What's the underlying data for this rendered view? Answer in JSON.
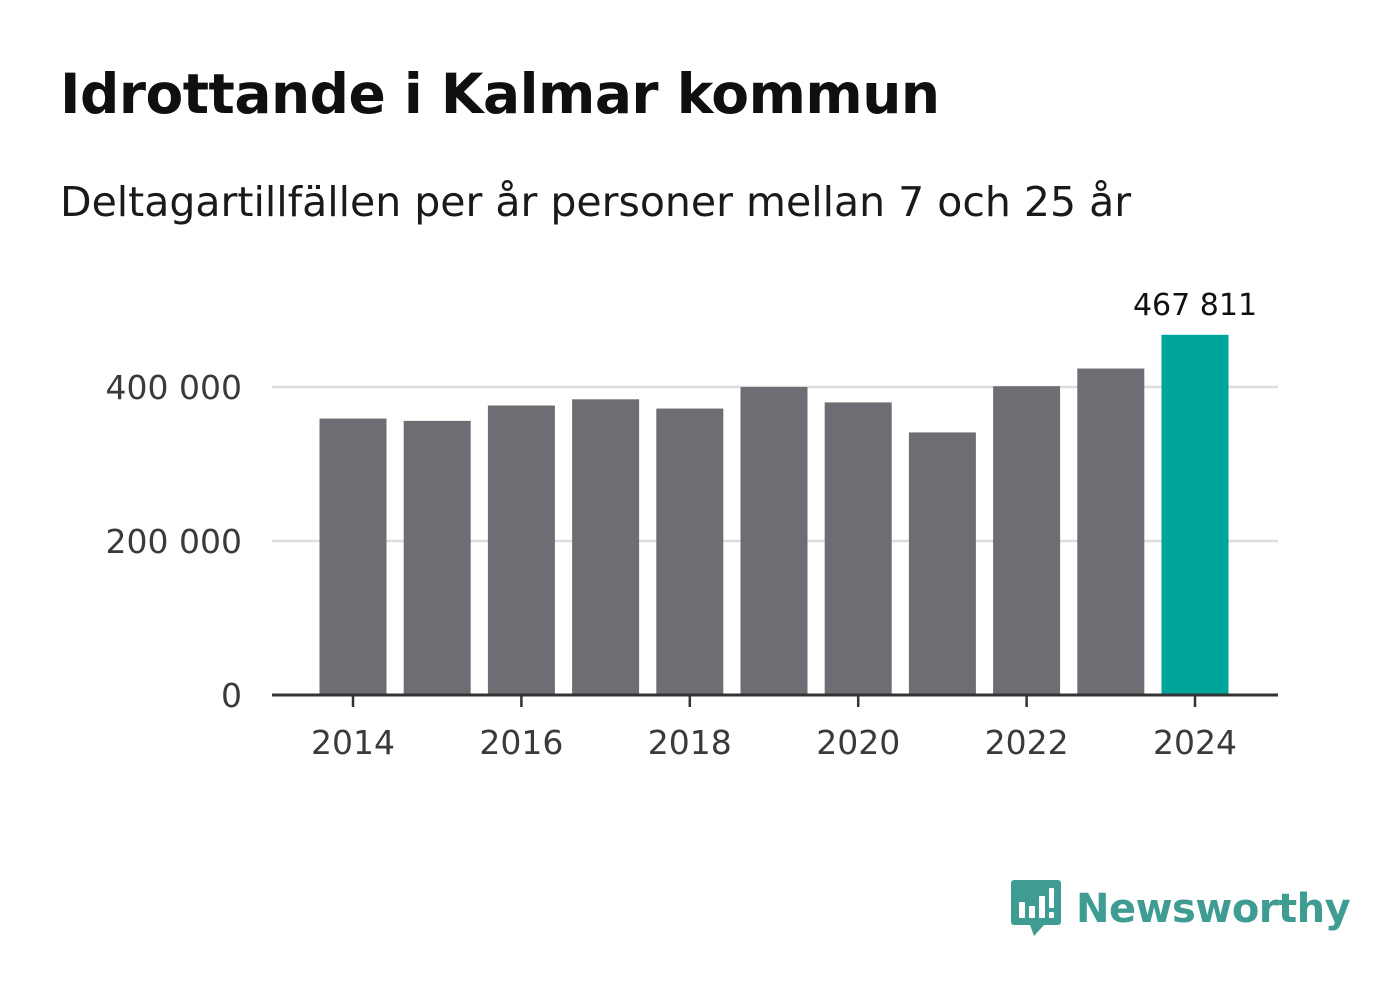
{
  "chart_data": {
    "type": "bar",
    "title": "Idrottande i Kalmar kommun",
    "subtitle": "Deltagartillfällen per år personer mellan 7 och 25 år",
    "xlabel": "",
    "ylabel": "",
    "categories": [
      "2014",
      "2015",
      "2016",
      "2017",
      "2018",
      "2019",
      "2020",
      "2021",
      "2022",
      "2023",
      "2024"
    ],
    "values": [
      359000,
      356000,
      376000,
      384000,
      372000,
      400000,
      380000,
      341000,
      401000,
      424000,
      467811
    ],
    "ylim": [
      0,
      500000
    ],
    "yticks": [
      0,
      200000,
      400000
    ],
    "ytick_labels": [
      "0",
      "200 000",
      "400 000"
    ],
    "xticks": [
      "2014",
      "2016",
      "2018",
      "2020",
      "2022",
      "2024"
    ],
    "highlight_index": 10,
    "highlight_label": "467 811",
    "colors": {
      "bar": "#6e6d74",
      "highlight": "#00a59a",
      "grid": "#dddddd",
      "axis": "#333333"
    }
  },
  "brand": {
    "name": "Newsworthy",
    "icon": "newsworthy-logo-icon",
    "color": "#3f9c92"
  }
}
